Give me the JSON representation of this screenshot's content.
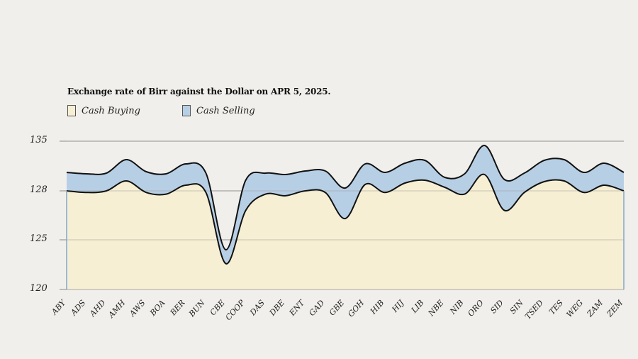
{
  "chart_data": {
    "type": "area",
    "title": "Exchange rate of Birr against the Dollar on APR 5, 2025.",
    "categories": [
      "ABY",
      "ADS",
      "AHD",
      "AMH",
      "AWS",
      "BOA",
      "BER",
      "BUN",
      "CBE",
      "COOP",
      "DAS",
      "DBE",
      "ENT",
      "GAD",
      "GBE",
      "GOH",
      "HIB",
      "HIJ",
      "LIB",
      "NBE",
      "NIB",
      "ORO",
      "SID",
      "SIN",
      "TSED",
      "TES",
      "WEG",
      "ZAM",
      "ZEM"
    ],
    "y_tick_labels": [
      "135",
      "128",
      "125",
      "120"
    ],
    "series": [
      {
        "name": "Cash Buying",
        "color": "#f6efd3",
        "values": [
          128.0,
          127.9,
          128.0,
          129.4,
          127.9,
          127.8,
          128.8,
          127.9,
          122.6,
          126.8,
          127.8,
          127.7,
          128.0,
          127.9,
          126.3,
          128.9,
          127.9,
          129.1,
          129.5,
          128.5,
          127.8,
          130.3,
          126.8,
          127.9,
          129.3,
          129.4,
          127.9,
          128.8,
          128.0
        ]
      },
      {
        "name": "Cash Selling",
        "color": "#b7cfe5",
        "values": [
          130.6,
          130.4,
          130.5,
          132.4,
          130.7,
          130.4,
          131.8,
          130.5,
          124.0,
          129.5,
          130.5,
          130.3,
          130.8,
          130.8,
          128.4,
          131.8,
          130.6,
          131.9,
          132.3,
          129.9,
          130.4,
          134.4,
          129.6,
          130.5,
          132.3,
          132.4,
          130.6,
          131.9,
          130.6
        ]
      }
    ]
  }
}
